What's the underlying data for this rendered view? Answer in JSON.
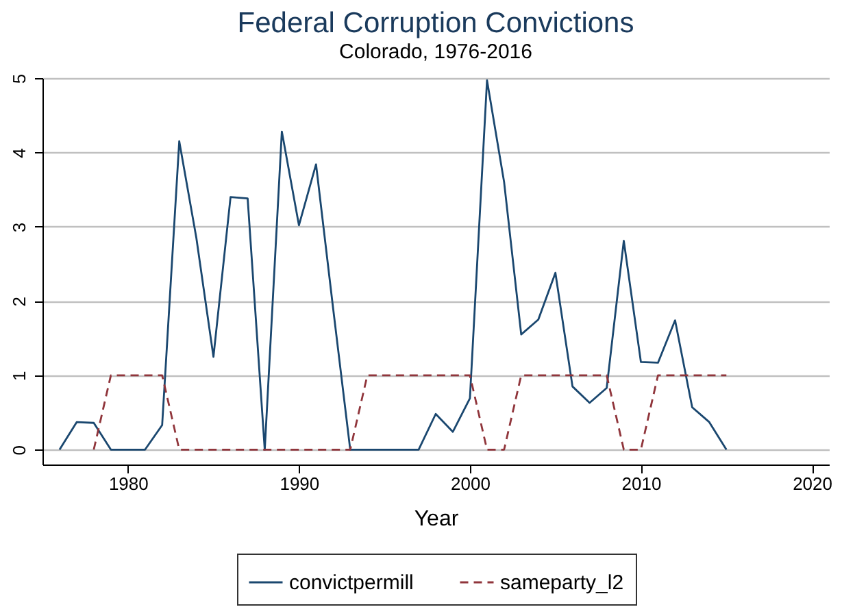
{
  "chart_data": {
    "type": "line",
    "title": "Federal Corruption Convictions",
    "subtitle": "Colorado, 1976-2016",
    "xlabel": "Year",
    "x": [
      1976,
      1977,
      1978,
      1979,
      1980,
      1981,
      1982,
      1983,
      1984,
      1985,
      1986,
      1987,
      1988,
      1989,
      1990,
      1991,
      1992,
      1993,
      1994,
      1995,
      1996,
      1997,
      1998,
      1999,
      2000,
      2001,
      2002,
      2003,
      2004,
      2005,
      2006,
      2007,
      2008,
      2009,
      2010,
      2011,
      2012,
      2013,
      2014,
      2015
    ],
    "series": [
      {
        "name": "convictpermill",
        "color": "#1a476f",
        "line_style": "solid",
        "values": [
          0,
          0.37,
          0.36,
          0,
          0,
          0,
          0.33,
          4.15,
          2.85,
          1.25,
          3.4,
          3.38,
          0,
          4.28,
          3.02,
          3.84,
          1.9,
          0,
          0,
          0,
          0,
          0,
          0.48,
          0.24,
          0.69,
          4.97,
          3.6,
          1.55,
          1.75,
          2.38,
          0.85,
          0.63,
          0.83,
          2.81,
          1.18,
          1.17,
          1.74,
          0.57,
          0.37,
          0
        ]
      },
      {
        "name": "sameparty_l2",
        "color": "#90353b",
        "line_style": "dashed",
        "values": [
          null,
          null,
          0,
          1,
          1,
          1,
          1,
          0,
          0,
          0,
          0,
          0,
          0,
          0,
          0,
          0,
          0,
          0,
          1,
          1,
          1,
          1,
          1,
          1,
          1,
          0,
          0,
          1,
          1,
          1,
          1,
          1,
          1,
          0,
          0,
          1,
          1,
          1,
          1,
          1
        ]
      }
    ],
    "xlim": [
      1975,
      2021
    ],
    "xticks": [
      1980,
      1990,
      2000,
      2010,
      2020
    ],
    "ylim": [
      -0.2,
      5
    ],
    "yticks": [
      0,
      1,
      2,
      3,
      4,
      5
    ],
    "grid": "y",
    "legend": "bottom",
    "marker": "none"
  }
}
